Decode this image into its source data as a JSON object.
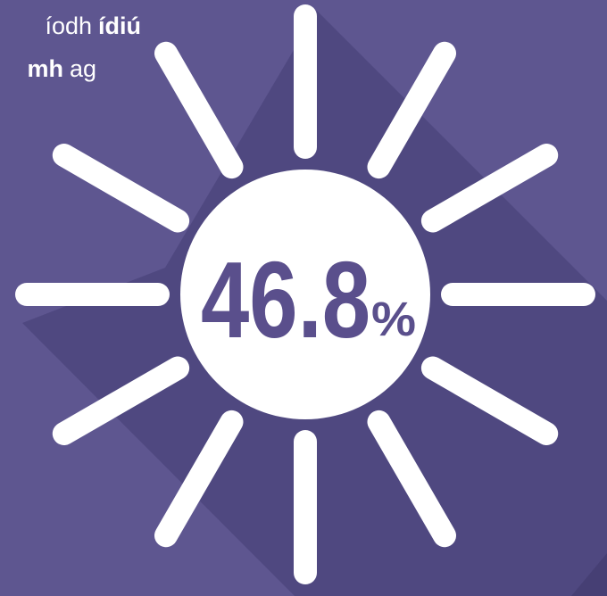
{
  "text_lines": [
    [
      {
        "text": "íodh",
        "bold": false
      },
      {
        "text": "ídiú",
        "bold": true
      }
    ],
    [
      {
        "text": "mh",
        "bold": true
      },
      {
        "text": "ag",
        "bold": false
      }
    ]
  ],
  "stat": {
    "value": 46.8,
    "unit": "%"
  }
}
